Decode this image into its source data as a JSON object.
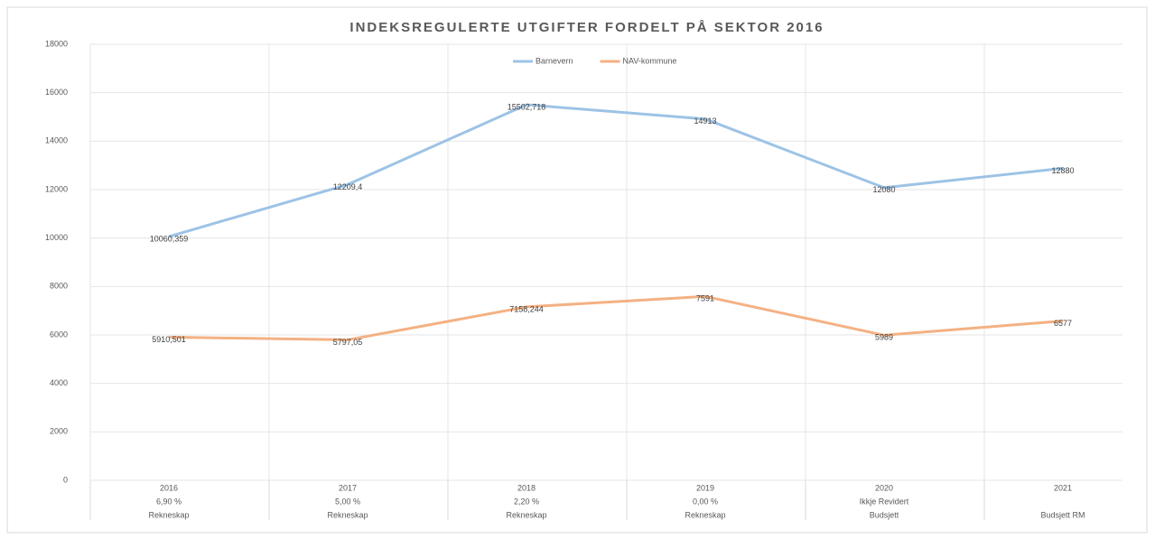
{
  "chart_data": {
    "type": "line",
    "title": "INDEKSREGULERTE UTGIFTER FORDELT PÅ SEKTOR 2016",
    "categories": [
      [
        "2016",
        "6,90 %",
        "Rekneskap"
      ],
      [
        "2017",
        "5,00 %",
        "Rekneskap"
      ],
      [
        "2018",
        "2,20 %",
        "Rekneskap"
      ],
      [
        "2019",
        "0,00 %",
        "Rekneskap"
      ],
      [
        "2020",
        "Ikkje Revidert",
        "Budsjett"
      ],
      [
        "2021",
        null,
        "Budsjett RM"
      ]
    ],
    "series": [
      {
        "name": "Barnevern",
        "color": "#9dc3e6",
        "values": [
          10060.359,
          12209.4,
          15502.718,
          14913,
          12080,
          12880
        ],
        "value_labels": [
          "10060,359",
          "12209,4",
          "15502,718",
          "14913",
          "12080",
          "12880"
        ]
      },
      {
        "name": "NAV-kommune",
        "color": "#f4b183",
        "values": [
          5910.501,
          5797.05,
          7158.244,
          7591,
          5989,
          6577
        ],
        "value_labels": [
          "5910,501",
          "5797,05",
          "7158,244",
          "7591",
          "5989",
          "6577"
        ]
      }
    ],
    "ylim": [
      0,
      18000
    ],
    "yticks": [
      0,
      2000,
      4000,
      6000,
      8000,
      10000,
      12000,
      14000,
      16000,
      18000
    ],
    "grid": true,
    "legend": "top"
  }
}
